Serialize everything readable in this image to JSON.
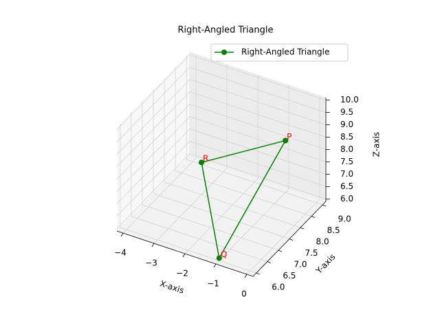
{
  "chart_data": {
    "type": "line3d",
    "title": "Right-Angled Triangle",
    "xlabel": "X-axis",
    "ylabel": "Y-axis",
    "zlabel": "Z-axis",
    "xlim": [
      -4.2,
      0.2
    ],
    "ylim": [
      5.85,
      9.15
    ],
    "zlim": [
      5.9,
      10.1
    ],
    "xticks": [
      {
        "value": -4,
        "label": "−4"
      },
      {
        "value": -3,
        "label": "−3"
      },
      {
        "value": -2,
        "label": "−2"
      },
      {
        "value": -1,
        "label": "−1"
      },
      0
    ],
    "yticks": [
      {
        "value": 6,
        "label": "6.0"
      },
      6.5,
      {
        "value": 7,
        "label": "7.0"
      },
      7.5,
      {
        "value": 8,
        "label": "8.0"
      },
      8.5,
      {
        "value": 9,
        "label": "9.0"
      }
    ],
    "zticks": [
      {
        "value": 6,
        "label": "6.0"
      },
      6.5,
      {
        "value": 7,
        "label": "7.0"
      },
      7.5,
      {
        "value": 8,
        "label": "8.0"
      },
      8.5,
      {
        "value": 9,
        "label": "9.0"
      },
      9.5,
      {
        "value": 10,
        "label": "10.0"
      }
    ],
    "series": [
      {
        "name": "Right-Angled Triangle",
        "color": "#008000",
        "x": [
          -1,
          -1,
          -3,
          -1
        ],
        "y": [
          9,
          6,
          8,
          9
        ],
        "z": [
          8,
          6,
          7.2,
          8
        ]
      }
    ],
    "point_labels": [
      "P",
      "Q",
      "R"
    ],
    "point_label_color": "#ff0000",
    "grid": true,
    "legend": "upper right"
  }
}
